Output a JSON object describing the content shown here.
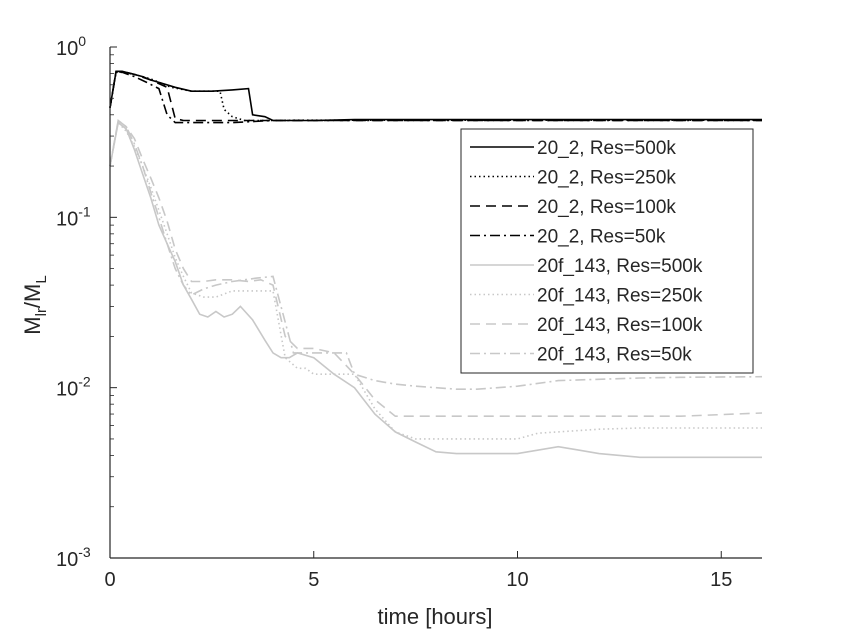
{
  "chart_data": {
    "type": "line",
    "title": "",
    "xlabel": "time [hours]",
    "ylabel_main": "M",
    "ylabel_sub_numerator": "lr",
    "ylabel_divider": "/M",
    "ylabel_sub_denominator": "L",
    "xlim": [
      0,
      16
    ],
    "ylim": [
      0.001,
      1
    ],
    "yscale": "log",
    "grid": false,
    "legend_position": "top-right",
    "x_ticks": [
      {
        "value": 0,
        "label": "0"
      },
      {
        "value": 5,
        "label": "5"
      },
      {
        "value": 10,
        "label": "10"
      },
      {
        "value": 15,
        "label": "15"
      }
    ],
    "y_ticks": [
      {
        "value": 1,
        "base": "10",
        "exp": "0"
      },
      {
        "value": 0.1,
        "base": "10",
        "exp": "-1"
      },
      {
        "value": 0.01,
        "base": "10",
        "exp": "-2"
      },
      {
        "value": 0.001,
        "base": "10",
        "exp": "-3"
      }
    ],
    "colors": {
      "black": "#000000",
      "gray": "#c8c8c8"
    },
    "series": [
      {
        "name": "20_2, Res=500k",
        "color": "#000000",
        "dash": "solid",
        "x": [
          0,
          0.15,
          0.3,
          0.5,
          0.8,
          1.0,
          1.2,
          1.6,
          2.0,
          2.5,
          3.0,
          3.4,
          3.5,
          3.8,
          4.0,
          4.5,
          5,
          6,
          8,
          10,
          12,
          14,
          16
        ],
        "y": [
          0.44,
          0.72,
          0.72,
          0.7,
          0.67,
          0.64,
          0.62,
          0.58,
          0.55,
          0.55,
          0.56,
          0.57,
          0.4,
          0.39,
          0.37,
          0.37,
          0.37,
          0.375,
          0.375,
          0.375,
          0.375,
          0.375,
          0.375
        ]
      },
      {
        "name": "20_2, Res=250k",
        "color": "#000000",
        "dash": "dotted",
        "x": [
          0,
          0.15,
          0.3,
          0.6,
          1.0,
          1.5,
          2.0,
          2.7,
          2.8,
          3.0,
          3.3,
          3.7,
          4.0,
          4.5,
          6,
          8,
          10,
          12,
          14,
          16
        ],
        "y": [
          0.44,
          0.71,
          0.71,
          0.69,
          0.65,
          0.58,
          0.55,
          0.55,
          0.43,
          0.39,
          0.37,
          0.37,
          0.37,
          0.372,
          0.372,
          0.372,
          0.372,
          0.372,
          0.372,
          0.372
        ]
      },
      {
        "name": "20_2, Res=100k",
        "color": "#000000",
        "dash": "dashed",
        "x": [
          0,
          0.15,
          0.3,
          0.6,
          1.0,
          1.4,
          1.6,
          1.8,
          2.5,
          3.5,
          4.0,
          6,
          8,
          10,
          12,
          14,
          16
        ],
        "y": [
          0.44,
          0.72,
          0.72,
          0.69,
          0.64,
          0.58,
          0.38,
          0.37,
          0.37,
          0.37,
          0.37,
          0.37,
          0.37,
          0.37,
          0.37,
          0.37,
          0.37
        ]
      },
      {
        "name": "20_2, Res=50k",
        "color": "#000000",
        "dash": "dashdot",
        "x": [
          0,
          0.15,
          0.3,
          0.6,
          0.9,
          1.2,
          1.4,
          1.6,
          2.0,
          3.0,
          4.0,
          6,
          8,
          10,
          12,
          14,
          16
        ],
        "y": [
          0.44,
          0.72,
          0.71,
          0.67,
          0.62,
          0.57,
          0.4,
          0.36,
          0.36,
          0.36,
          0.37,
          0.37,
          0.37,
          0.37,
          0.37,
          0.37,
          0.37
        ]
      },
      {
        "name": "20f_143, Res=500k",
        "color": "#c8c8c8",
        "dash": "solid",
        "x": [
          0,
          0.2,
          0.4,
          0.6,
          0.8,
          1.0,
          1.2,
          1.4,
          1.6,
          1.8,
          2.0,
          2.2,
          2.4,
          2.6,
          2.8,
          3.0,
          3.2,
          3.5,
          3.8,
          4.0,
          4.2,
          4.4,
          4.6,
          5.0,
          5.5,
          6.0,
          6.5,
          7.0,
          7.5,
          8.0,
          8.5,
          9.0,
          10.0,
          11.0,
          11.5,
          12.0,
          13.0,
          14.0,
          15.0,
          16.0
        ],
        "y": [
          0.2,
          0.36,
          0.33,
          0.25,
          0.18,
          0.13,
          0.09,
          0.07,
          0.055,
          0.04,
          0.033,
          0.027,
          0.026,
          0.028,
          0.026,
          0.027,
          0.03,
          0.025,
          0.019,
          0.016,
          0.015,
          0.015,
          0.016,
          0.015,
          0.012,
          0.01,
          0.007,
          0.0055,
          0.0048,
          0.0042,
          0.0041,
          0.0041,
          0.0041,
          0.0045,
          0.0043,
          0.0041,
          0.0039,
          0.0039,
          0.0039,
          0.0039
        ]
      },
      {
        "name": "20f_143, Res=250k",
        "color": "#c8c8c8",
        "dash": "dotted",
        "x": [
          0,
          0.2,
          0.4,
          0.6,
          0.8,
          1.0,
          1.2,
          1.4,
          1.6,
          1.8,
          2.0,
          2.3,
          2.6,
          3.0,
          3.3,
          3.6,
          3.8,
          4.0,
          4.3,
          4.6,
          4.8,
          5.0,
          5.5,
          6.0,
          6.5,
          7.0,
          7.5,
          8.0,
          9.0,
          10.0,
          10.5,
          11.0,
          12.0,
          13.0,
          14.0,
          16.0
        ],
        "y": [
          0.2,
          0.36,
          0.32,
          0.26,
          0.2,
          0.15,
          0.11,
          0.08,
          0.058,
          0.045,
          0.036,
          0.034,
          0.034,
          0.037,
          0.037,
          0.037,
          0.037,
          0.037,
          0.015,
          0.013,
          0.013,
          0.012,
          0.012,
          0.012,
          0.0075,
          0.0055,
          0.005,
          0.005,
          0.005,
          0.005,
          0.0054,
          0.0055,
          0.0057,
          0.0058,
          0.0058,
          0.0058
        ]
      },
      {
        "name": "20f_143, Res=100k",
        "color": "#c8c8c8",
        "dash": "dashed",
        "x": [
          0,
          0.2,
          0.4,
          0.6,
          0.8,
          1.0,
          1.2,
          1.4,
          1.6,
          1.8,
          2.0,
          2.3,
          2.6,
          3.0,
          3.4,
          3.7,
          4.0,
          4.3,
          4.6,
          5.0,
          5.5,
          6.0,
          6.5,
          7.0,
          7.5,
          8.0,
          9.0,
          10.0,
          12.0,
          14.0,
          16.0
        ],
        "y": [
          0.2,
          0.37,
          0.34,
          0.29,
          0.22,
          0.17,
          0.13,
          0.095,
          0.065,
          0.05,
          0.042,
          0.042,
          0.043,
          0.043,
          0.042,
          0.043,
          0.04,
          0.02,
          0.017,
          0.017,
          0.016,
          0.012,
          0.0085,
          0.0068,
          0.0068,
          0.0068,
          0.0068,
          0.0068,
          0.0068,
          0.0068,
          0.0071
        ]
      },
      {
        "name": "20f_143, Res=50k",
        "color": "#c8c8c8",
        "dash": "dashdot",
        "x": [
          0,
          0.2,
          0.4,
          0.6,
          0.8,
          1.0,
          1.2,
          1.4,
          1.6,
          1.8,
          2.0,
          2.3,
          2.6,
          3.0,
          3.3,
          3.6,
          4.0,
          4.5,
          5.0,
          5.5,
          5.8,
          6.0,
          6.5,
          7.0,
          7.5,
          8.0,
          8.5,
          9.0,
          10.0,
          11.0,
          12.0,
          13.0,
          14.0,
          16.0
        ],
        "y": [
          0.2,
          0.37,
          0.34,
          0.27,
          0.2,
          0.14,
          0.1,
          0.07,
          0.05,
          0.04,
          0.035,
          0.038,
          0.04,
          0.042,
          0.043,
          0.044,
          0.045,
          0.016,
          0.016,
          0.016,
          0.016,
          0.012,
          0.011,
          0.0105,
          0.0102,
          0.01,
          0.0098,
          0.0098,
          0.0102,
          0.011,
          0.0112,
          0.0114,
          0.0115,
          0.0116
        ]
      }
    ]
  }
}
